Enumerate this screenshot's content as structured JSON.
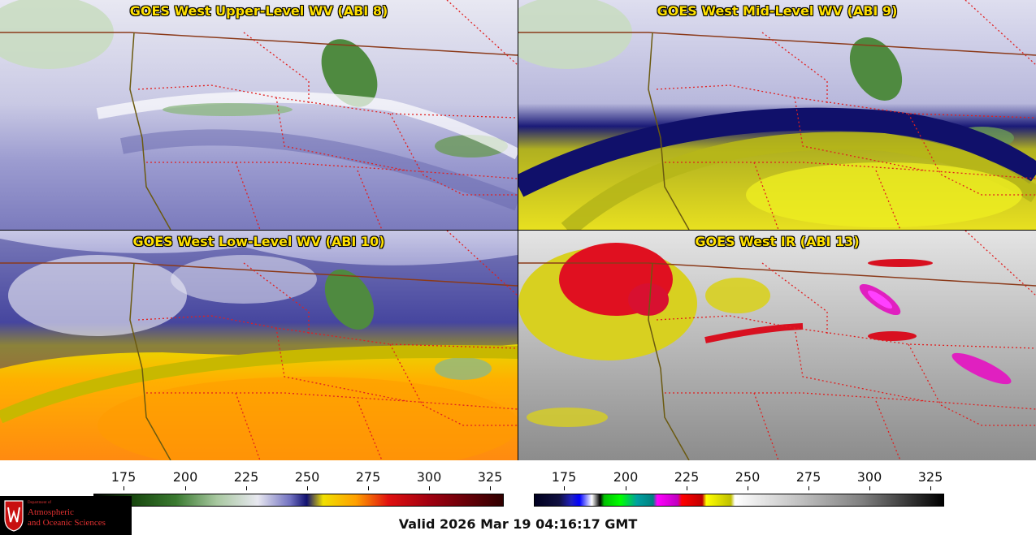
{
  "panels": {
    "tl": {
      "title": "GOES West Upper-Level WV (ABI 8)"
    },
    "tr": {
      "title": "GOES West Mid-Level WV (ABI 9)"
    },
    "bl": {
      "title": "GOES West Low-Level WV (ABI 10)"
    },
    "br": {
      "title": "GOES West IR (ABI 13)"
    }
  },
  "colorbars": {
    "wv": {
      "ticks": [
        "175",
        "200",
        "225",
        "250",
        "275",
        "300",
        "325"
      ]
    },
    "ir": {
      "ticks": [
        "175",
        "200",
        "225",
        "250",
        "275",
        "300",
        "325"
      ]
    }
  },
  "valid_time": "Valid 2026 Mar 19 04:16:17 GMT",
  "logo": {
    "line1": "Department of",
    "line2": "Atmospheric",
    "line3": "and Oceanic Sciences"
  },
  "colors": {
    "border_state": "#e02020",
    "border_country": "#8b3a1a",
    "coast": "#6b5a10",
    "title_text": "#ffe000"
  }
}
